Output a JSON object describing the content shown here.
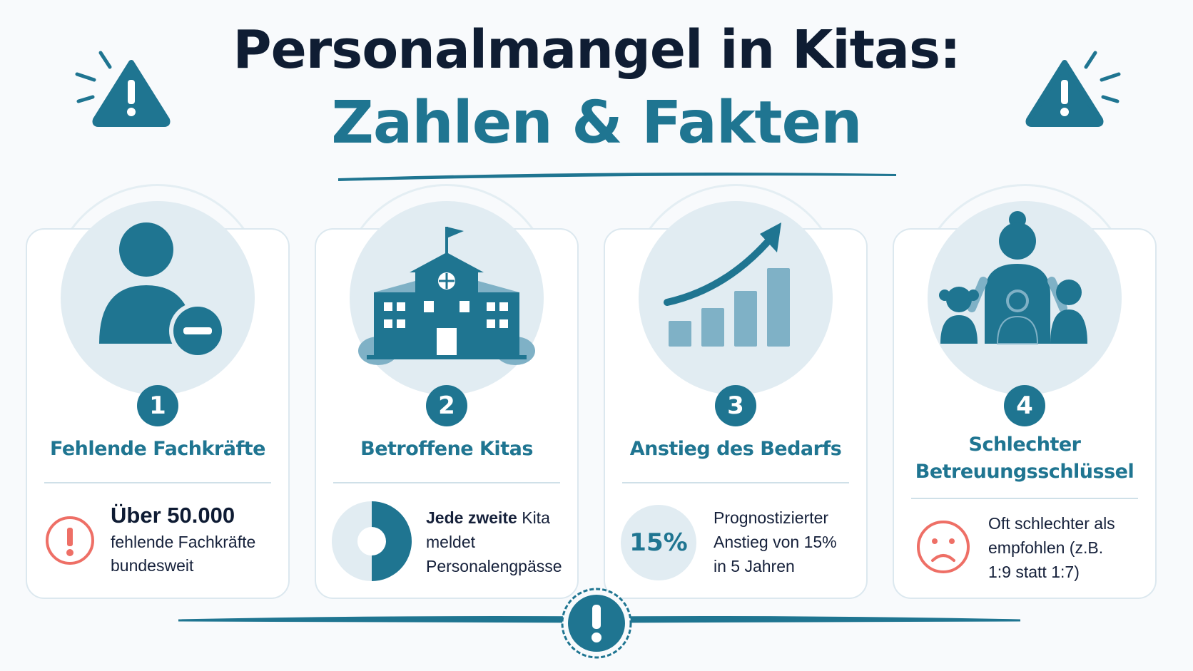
{
  "header": {
    "title_line1": "Personalmangel in Kitas:",
    "title_line2": "Zahlen & Fakten"
  },
  "colors": {
    "primary": "#1f7591",
    "light": "#e1ecf2",
    "mid": "#7fb1c6",
    "alert": "#ee6f66",
    "dark": "#0f1d33"
  },
  "cards": [
    {
      "number": "1",
      "icon": "person-minus-icon",
      "title": "Fehlende Fachkräfte",
      "highlight": "Über 50.000",
      "text_line1": "fehlende Fachkräfte",
      "text_line2": "bundesweit",
      "detail_icon": "exclamation-circle-icon"
    },
    {
      "number": "2",
      "icon": "school-building-icon",
      "title": "Betroffene Kitas",
      "bold_part": "Jede zweite",
      "text_rest": " Kita",
      "text_line2": "meldet",
      "text_line3": "Personalengpässe",
      "detail_icon": "half-donut-chart-icon",
      "share": 0.5
    },
    {
      "number": "3",
      "icon": "growth-chart-icon",
      "title": "Anstieg des Bedarfs",
      "badge": "15%",
      "text_line1": "Prognostizierter",
      "text_line2": "Anstieg von 15%",
      "text_line3": "in 5 Jahren"
    },
    {
      "number": "4",
      "icon": "caregiver-children-icon",
      "title_line1": "Schlechter",
      "title_line2": "Betreuungsschlüssel",
      "text_line1": "Oft schlechter als",
      "text_line2": "empfohlen (z.B.",
      "text_line3": "1:9 statt 1:7)",
      "detail_icon": "sad-face-icon"
    }
  ],
  "footer": {
    "icon": "exclamation-badge-icon"
  }
}
